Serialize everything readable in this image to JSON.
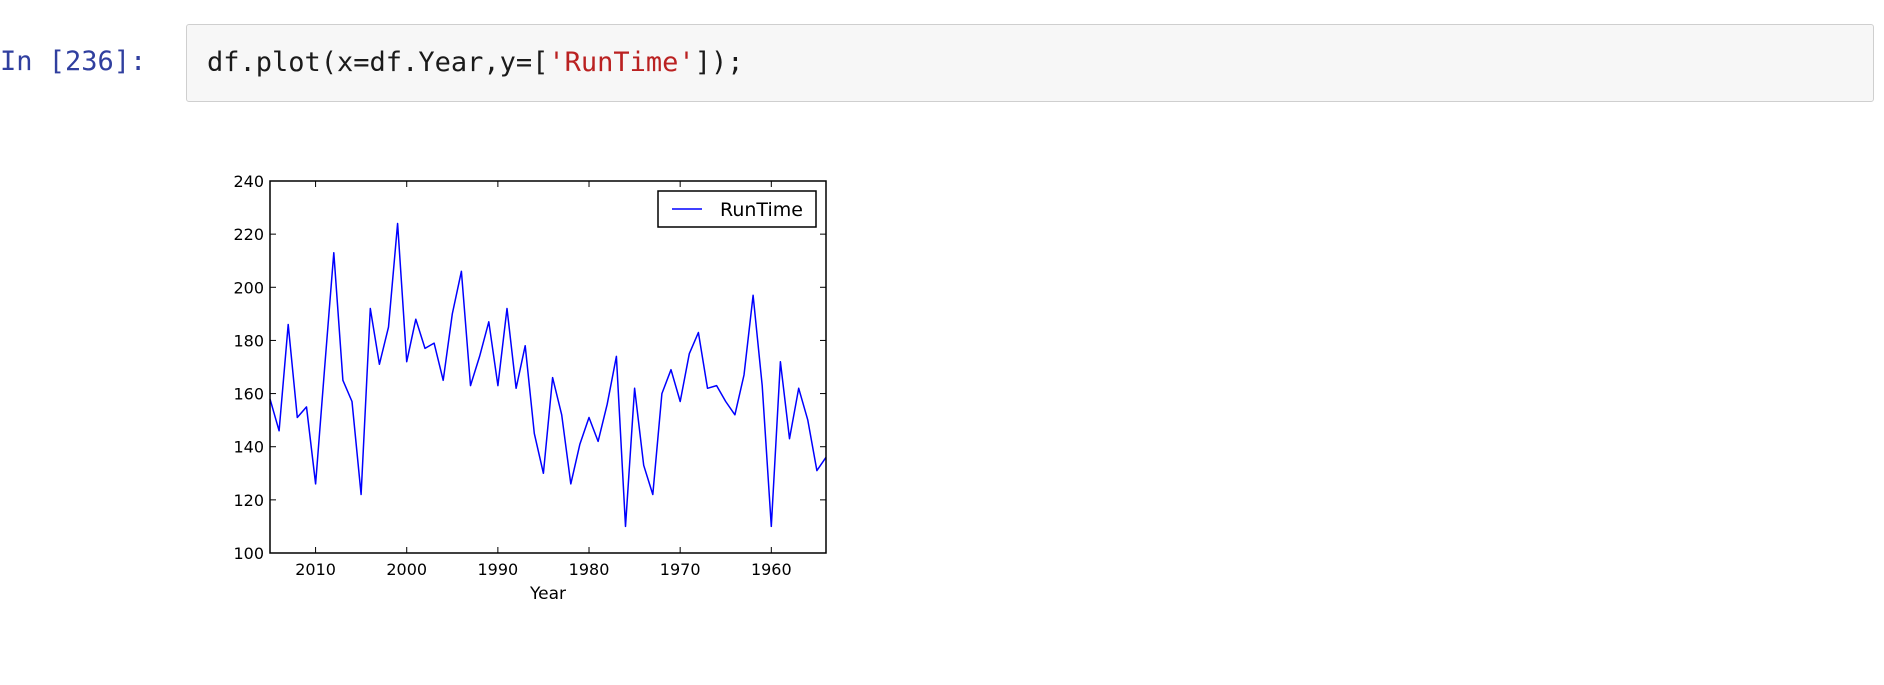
{
  "cell": {
    "prompt": "In [236]:",
    "code_prefix": "df.plot(x=df.Year,y=[",
    "code_string": "'RunTime'",
    "code_suffix": "]);"
  },
  "chart_data": {
    "type": "line",
    "xlabel": "Year",
    "ylabel": "",
    "title": "",
    "x_axis_inverted": true,
    "xlim": [
      2015,
      1954
    ],
    "ylim": [
      100,
      240
    ],
    "xticks": [
      2010,
      2000,
      1990,
      1980,
      1970,
      1960
    ],
    "yticks": [
      100,
      120,
      140,
      160,
      180,
      200,
      220,
      240
    ],
    "legend_position": "top-right",
    "series": [
      {
        "name": "RunTime",
        "color": "#0000ff",
        "x": [
          2015,
          2014,
          2013,
          2012,
          2011,
          2010,
          2009,
          2008,
          2007,
          2006,
          2005,
          2004,
          2003,
          2002,
          2001,
          2000,
          1999,
          1998,
          1997,
          1996,
          1995,
          1994,
          1993,
          1992,
          1991,
          1990,
          1989,
          1988,
          1987,
          1986,
          1985,
          1984,
          1983,
          1982,
          1981,
          1980,
          1979,
          1978,
          1977,
          1976,
          1975,
          1974,
          1973,
          1972,
          1971,
          1970,
          1969,
          1968,
          1967,
          1966,
          1965,
          1964,
          1963,
          1962,
          1961,
          1960,
          1959,
          1958,
          1957,
          1956,
          1955,
          1954
        ],
        "y": [
          158,
          146,
          186,
          151,
          155,
          126,
          170,
          213,
          165,
          157,
          122,
          192,
          171,
          185,
          224,
          172,
          188,
          177,
          179,
          165,
          190,
          206,
          163,
          174,
          187,
          163,
          192,
          162,
          178,
          145,
          130,
          166,
          152,
          126,
          141,
          151,
          142,
          156,
          174,
          110,
          162,
          133,
          122,
          160,
          169,
          157,
          175,
          183,
          162,
          163,
          157,
          152,
          167,
          197,
          163,
          110,
          172,
          143,
          162,
          150,
          131,
          136
        ]
      }
    ]
  }
}
